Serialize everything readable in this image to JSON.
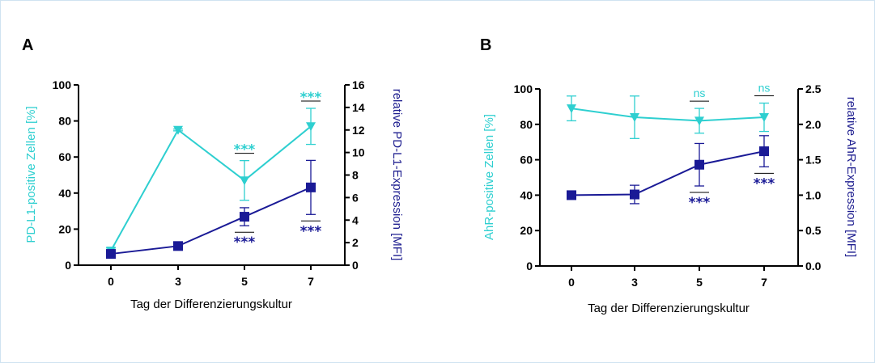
{
  "colors": {
    "cyan": "#2ecfd0",
    "navy": "#1a1a96",
    "axis": "#000000"
  },
  "chart_data": [
    {
      "panel": "A",
      "type": "line",
      "xlabel": "Tag der Differenzierungskultur",
      "ylabel_left": "PD-L1-positive Zellen [%]",
      "ylabel_right": "relative PD-L1-Expression [MFI]",
      "x": [
        0,
        3,
        5,
        7
      ],
      "x_ticks": [
        "0",
        "3",
        "5",
        "7"
      ],
      "ylim_left": [
        0,
        100
      ],
      "yticks_left": [
        0,
        20,
        40,
        60,
        80,
        100
      ],
      "ylim_right": [
        0,
        16
      ],
      "yticks_right": [
        0,
        2,
        4,
        6,
        8,
        10,
        12,
        14,
        16
      ],
      "series": [
        {
          "axis": "left",
          "marker": "triangle-down",
          "color": "#2ecfd0",
          "values": [
            8,
            75,
            47,
            77
          ],
          "err": [
            1.5,
            0.5,
            11,
            10
          ],
          "annotations": [
            null,
            null,
            "***",
            "***"
          ],
          "annotation_pos": "above"
        },
        {
          "axis": "right",
          "marker": "square",
          "color": "#1a1a96",
          "values": [
            1.0,
            1.7,
            4.3,
            6.9
          ],
          "err": [
            0,
            0,
            0.8,
            2.4
          ],
          "annotations": [
            null,
            null,
            "***",
            "***"
          ],
          "annotation_pos": "below"
        }
      ]
    },
    {
      "panel": "B",
      "type": "line",
      "xlabel": "Tag der Differenzierungskultur",
      "ylabel_left": "AhR-positive Zellen [%]",
      "ylabel_right": "relative AhR-Expression [MFI]",
      "x": [
        0,
        3,
        5,
        7
      ],
      "x_ticks": [
        "0",
        "3",
        "5",
        "7"
      ],
      "ylim_left": [
        0,
        100
      ],
      "yticks_left": [
        0,
        20,
        40,
        60,
        80,
        100
      ],
      "ylim_right": [
        0,
        2.5
      ],
      "yticks_right": [
        "0.0",
        "0.5",
        "1.0",
        "1.5",
        "2.0",
        "2.5"
      ],
      "series": [
        {
          "axis": "left",
          "marker": "triangle-down",
          "color": "#2ecfd0",
          "values": [
            89,
            84,
            82,
            84
          ],
          "err": [
            7,
            12,
            7,
            8
          ],
          "annotations": [
            null,
            null,
            "ns",
            "ns"
          ],
          "annotation_pos": "above"
        },
        {
          "axis": "right",
          "marker": "square",
          "color": "#1a1a96",
          "values": [
            1.0,
            1.01,
            1.43,
            1.62
          ],
          "err": [
            0,
            0.13,
            0.3,
            0.22
          ],
          "annotations": [
            null,
            null,
            "***",
            "***"
          ],
          "annotation_pos": "below"
        }
      ]
    }
  ]
}
